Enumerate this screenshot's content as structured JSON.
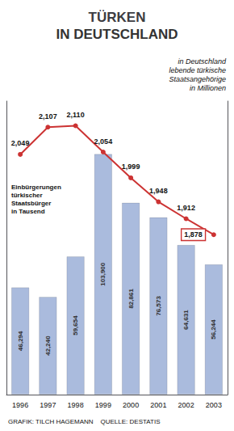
{
  "chart_data": {
    "type": "bar",
    "title": "TÜRKEN",
    "subtitle": "IN DEUTSCHLAND",
    "categories": [
      "1996",
      "1997",
      "1998",
      "1999",
      "2000",
      "2001",
      "2002",
      "2003"
    ],
    "series": [
      {
        "type": "bar",
        "color": "#aabbdd",
        "values": [
          46294,
          42240,
          59654,
          103900,
          82861,
          76573,
          64631,
          56244
        ],
        "value_labels": [
          "46,294",
          "42,240",
          "59,654",
          "103,900",
          "82,861",
          "76,573",
          "64,631",
          "56,244"
        ]
      },
      {
        "type": "line",
        "axis": "y2",
        "color": "#cc3333",
        "marker": "circle",
        "values": [
          2.049,
          2.107,
          2.11,
          2.054,
          1.999,
          1.948,
          1.912,
          1.878
        ],
        "value_labels": [
          "2,049",
          "2,107",
          "2,110",
          "2,054",
          "1,999",
          "1,948",
          "1,912",
          "1,878"
        ]
      }
    ],
    "ylim": [
      0,
      126758
    ],
    "y2lim": [
      1.5375,
      2.1625
    ],
    "data_labels": true,
    "tick_labels": "x",
    "grid": false,
    "annotations": [
      "in Deutschland\nlebende türkische\nStaatsangehörige\nin Millionen",
      "Einbürgerungen\ntürkischer\nStaatsbürger\nin Tausend",
      "GRAFIK: TILCH HAGEMANN    QUELLE: DESTATIS"
    ]
  }
}
